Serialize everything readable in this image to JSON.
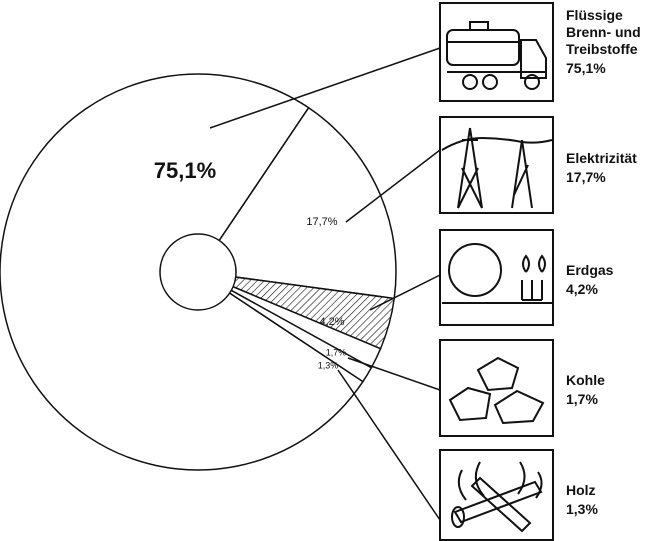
{
  "chart_data": {
    "type": "pie",
    "series": [
      {
        "name": "Flüssige Brenn- und Treibstoffe",
        "values": [
          75.1
        ],
        "value_labels": [
          "75,1%"
        ],
        "color": "#ffffff",
        "hatched": false
      },
      {
        "name": "Elektrizität",
        "values": [
          17.7
        ],
        "value_labels": [
          "17,7%"
        ],
        "color": "#ffffff",
        "hatched": false
      },
      {
        "name": "Erdgas",
        "values": [
          4.2
        ],
        "value_labels": [
          "4,2%"
        ],
        "color": "#ffffff",
        "hatched": true
      },
      {
        "name": "Kohle",
        "values": [
          1.7
        ],
        "value_labels": [
          "1,7%"
        ],
        "color": "#ffffff",
        "hatched": false
      },
      {
        "name": "Holz",
        "values": [
          1.3
        ],
        "value_labels": [
          "1,3%"
        ],
        "color": "#ffffff",
        "hatched": false
      }
    ],
    "donut": true
  }
}
